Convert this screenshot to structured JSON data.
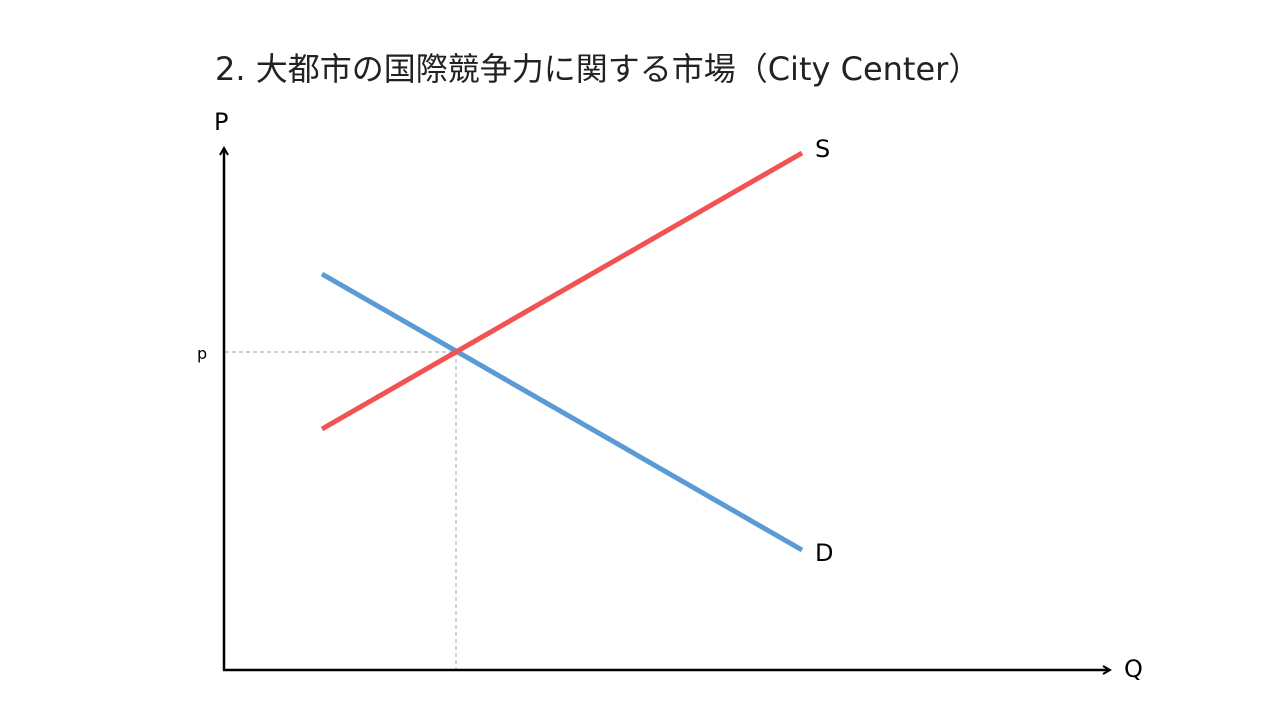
{
  "slide": {
    "title": "2. 大都市の国際競争力に関する市場（City Center）"
  },
  "diagram": {
    "type": "supply-demand",
    "y_axis_label": "P",
    "x_axis_label": "Q",
    "price_marker_label": "p",
    "supply_label": "S",
    "demand_label": "D",
    "colors": {
      "supply": "#f25252",
      "demand": "#5b9bd5",
      "axis": "#000000",
      "guide": "#a6a6a6"
    }
  }
}
